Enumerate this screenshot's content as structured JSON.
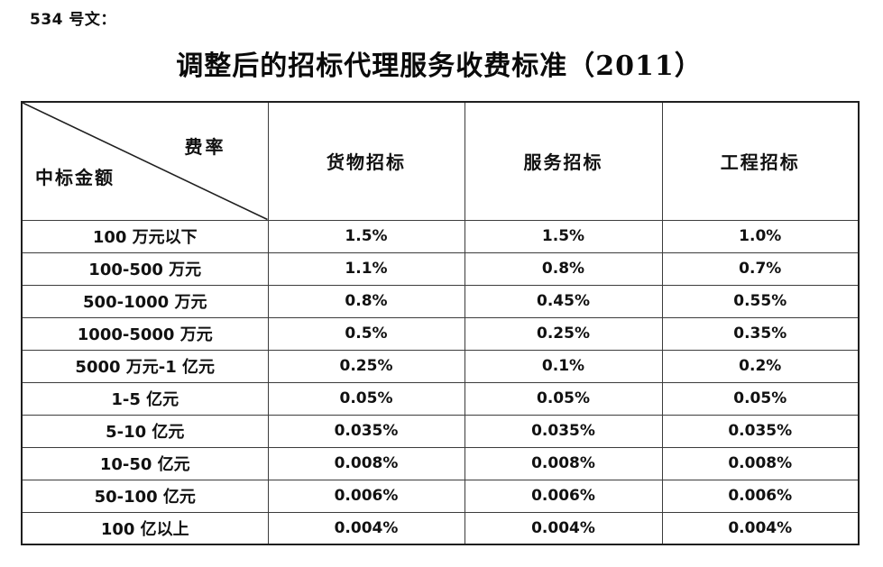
{
  "page": {
    "doc_label": "534 号文：",
    "title": "调整后的招标代理服务收费标准（2011）"
  },
  "table": {
    "corner": {
      "top_right": "费率",
      "bottom_left": "中标金额"
    },
    "columns": [
      "货物招标",
      "服务招标",
      "工程招标"
    ],
    "rows": [
      {
        "label": "100 万元以下",
        "values": [
          "1.5%",
          "1.5%",
          "1.0%"
        ]
      },
      {
        "label": "100-500 万元",
        "values": [
          "1.1%",
          "0.8%",
          "0.7%"
        ]
      },
      {
        "label": "500-1000 万元",
        "values": [
          "0.8%",
          "0.45%",
          "0.55%"
        ]
      },
      {
        "label": "1000-5000 万元",
        "values": [
          "0.5%",
          "0.25%",
          "0.35%"
        ]
      },
      {
        "label": "5000 万元-1 亿元",
        "values": [
          "0.25%",
          "0.1%",
          "0.2%"
        ]
      },
      {
        "label": "1-5 亿元",
        "values": [
          "0.05%",
          "0.05%",
          "0.05%"
        ]
      },
      {
        "label": "5-10 亿元",
        "values": [
          "0.035%",
          "0.035%",
          "0.035%"
        ]
      },
      {
        "label": "10-50 亿元",
        "values": [
          "0.008%",
          "0.008%",
          "0.008%"
        ]
      },
      {
        "label": "50-100 亿元",
        "values": [
          "0.006%",
          "0.006%",
          "0.006%"
        ]
      },
      {
        "label": "100 亿以上",
        "values": [
          "0.004%",
          "0.004%",
          "0.004%"
        ]
      }
    ],
    "colors": {
      "border_outer": "#1f1f1f",
      "border_inner": "#3c3c3c",
      "text": "#111111",
      "background": "#ffffff"
    }
  }
}
